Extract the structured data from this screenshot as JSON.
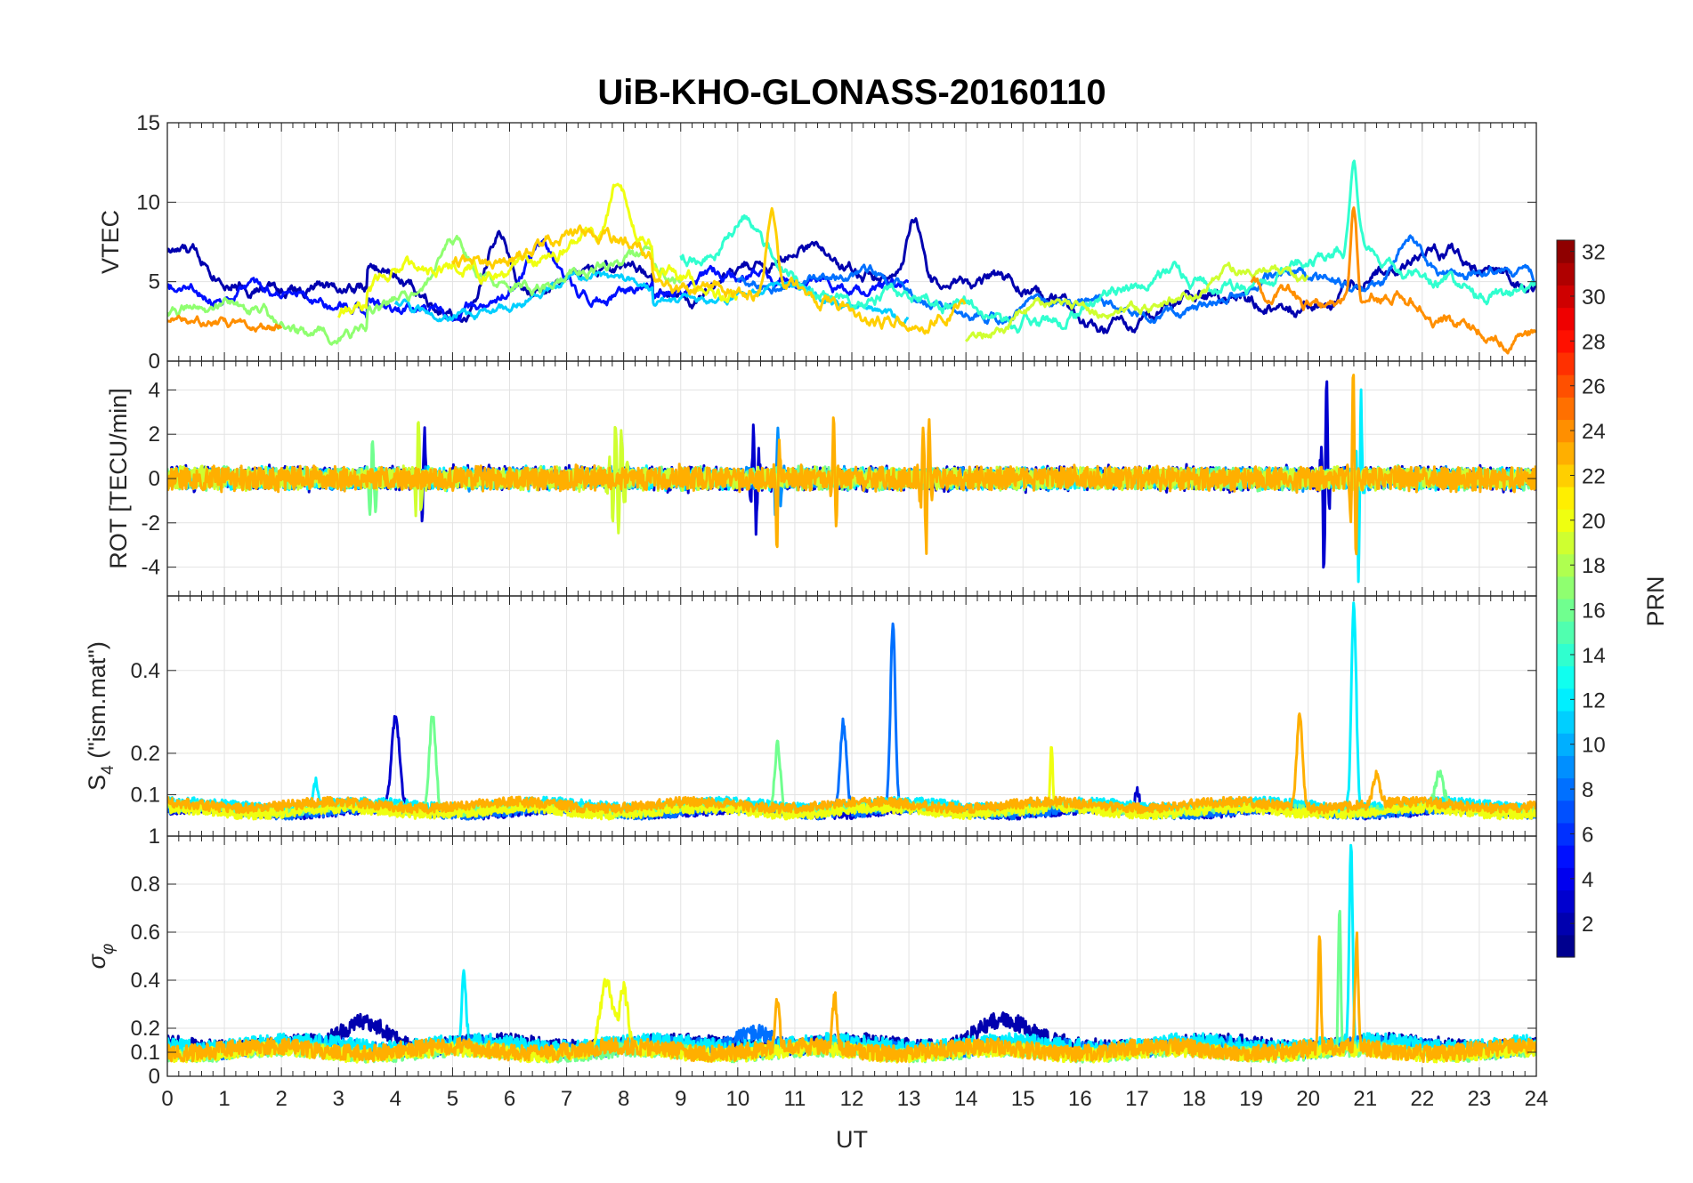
{
  "chart_data": {
    "type": "line",
    "title": "UiB-KHO-GLONASS-20160110",
    "xlabel": "UT",
    "xlim": [
      0,
      24
    ],
    "xticks": [
      "0",
      "1",
      "2",
      "3",
      "4",
      "5",
      "6",
      "7",
      "8",
      "9",
      "10",
      "11",
      "12",
      "13",
      "14",
      "15",
      "16",
      "17",
      "18",
      "19",
      "20",
      "21",
      "22",
      "23",
      "24"
    ],
    "colormap": "jet",
    "colorbar": {
      "label": "PRN",
      "range": [
        1,
        32
      ],
      "ticks": [
        "2",
        "4",
        "6",
        "8",
        "10",
        "12",
        "14",
        "16",
        "18",
        "20",
        "22",
        "24",
        "26",
        "28",
        "30",
        "32"
      ]
    },
    "panels": [
      {
        "id": "vtec",
        "ylabel": "VTEC",
        "ylim": [
          0,
          15
        ],
        "yticks": [
          "0",
          "5",
          "10",
          "15"
        ],
        "series": [
          {
            "prn": 2,
            "kind": "smooth",
            "start": 0,
            "end": 24,
            "base": 4.5,
            "amp": 1.6,
            "noise": 0.5,
            "peaks": [
              [
                5.8,
                4.5,
                0.3
              ],
              [
                13.1,
                4,
                0.2
              ]
            ]
          },
          {
            "prn": 5,
            "kind": "smooth",
            "start": 0,
            "end": 13,
            "base": 3.8,
            "amp": 1.3,
            "noise": 0.45,
            "peaks": [
              [
                6.5,
                3,
                0.4
              ]
            ]
          },
          {
            "prn": 8,
            "kind": "smooth",
            "start": 10,
            "end": 24,
            "base": 4.2,
            "amp": 1.2,
            "noise": 0.4,
            "peaks": [
              [
                21.8,
                3,
                0.3
              ]
            ]
          },
          {
            "prn": 11,
            "kind": "smooth",
            "start": 4,
            "end": 13,
            "base": 3.2,
            "amp": 1.2,
            "noise": 0.35,
            "peaks": [
              [
                13.2,
                6,
                0.15
              ]
            ]
          },
          {
            "prn": 14,
            "kind": "smooth",
            "start": 9,
            "end": 24,
            "base": 4.6,
            "amp": 1.6,
            "noise": 0.5,
            "peaks": [
              [
                10.2,
                3,
                0.4
              ],
              [
                20.8,
                5,
                0.1
              ]
            ]
          },
          {
            "prn": 17,
            "kind": "smooth",
            "start": 0,
            "end": 9,
            "base": 3.6,
            "amp": 1.4,
            "noise": 0.45,
            "peaks": [
              [
                5.0,
                2.5,
                0.4
              ]
            ]
          },
          {
            "prn": 19,
            "kind": "smooth",
            "start": 14,
            "end": 20,
            "base": 3.4,
            "amp": 1.6,
            "noise": 0.4,
            "peaks": []
          },
          {
            "prn": 20,
            "kind": "smooth",
            "start": 3,
            "end": 10,
            "base": 4.4,
            "amp": 1.6,
            "noise": 0.5,
            "peaks": [
              [
                7.9,
                3.5,
                0.2
              ]
            ]
          },
          {
            "prn": 22,
            "kind": "smooth",
            "start": 5,
            "end": 14,
            "base": 4.8,
            "amp": 1.5,
            "noise": 0.5,
            "peaks": [
              [
                10.6,
                5,
                0.12
              ]
            ]
          },
          {
            "prn": 24,
            "kind": "smooth",
            "start": 19,
            "end": 24,
            "base": 3.8,
            "amp": 1.4,
            "noise": 0.5,
            "peaks": [
              [
                20.8,
                6.5,
                0.08
              ]
            ]
          },
          {
            "prn": 24,
            "kind": "smooth",
            "start": 0,
            "end": 2,
            "base": 3.0,
            "amp": 0.8,
            "noise": 0.35,
            "peaks": []
          }
        ]
      },
      {
        "id": "rot",
        "ylabel": "ROT [TECU/min]",
        "ylim": [
          -5.3,
          5.3
        ],
        "yticks": [
          "-4",
          "-2",
          "0",
          "2",
          "4"
        ],
        "series": [
          {
            "prn": 3,
            "kind": "noise",
            "start": 0,
            "end": 24,
            "base": 0,
            "amp": 0.35,
            "noise": 0.5,
            "peaks": [
              [
                4.5,
                2.5,
                0.05
              ],
              [
                20.3,
                5,
                0.06
              ],
              [
                10.3,
                2.5,
                0.08
              ]
            ]
          },
          {
            "prn": 9,
            "kind": "noise",
            "start": 0,
            "end": 24,
            "base": 0,
            "amp": 0.3,
            "noise": 0.45,
            "peaks": [
              [
                10.7,
                2.3,
                0.06
              ]
            ]
          },
          {
            "prn": 12,
            "kind": "noise",
            "start": 0,
            "end": 24,
            "base": 0,
            "amp": 0.3,
            "noise": 0.45,
            "peaks": [
              [
                20.9,
                5,
                0.05
              ]
            ]
          },
          {
            "prn": 16,
            "kind": "noise",
            "start": 0,
            "end": 24,
            "base": 0,
            "amp": 0.3,
            "noise": 0.45,
            "peaks": [
              [
                3.6,
                1.8,
                0.1
              ]
            ]
          },
          {
            "prn": 19,
            "kind": "noise",
            "start": 0,
            "end": 24,
            "base": 0,
            "amp": 0.3,
            "noise": 0.45,
            "peaks": [
              [
                7.9,
                3,
                0.12
              ],
              [
                4.4,
                2.5,
                0.06
              ]
            ]
          },
          {
            "prn": 23,
            "kind": "noise",
            "start": 0,
            "end": 24,
            "base": 0,
            "amp": 0.35,
            "noise": 0.5,
            "peaks": [
              [
                10.7,
                3.5,
                0.04
              ],
              [
                13.3,
                3.2,
                0.1
              ],
              [
                20.8,
                5,
                0.06
              ],
              [
                11.7,
                3,
                0.05
              ]
            ]
          }
        ]
      },
      {
        "id": "s4",
        "ylabel": "S4 (\"ism.mat\")",
        "ylabel_main": "S",
        "ylabel_sub": "4",
        "ylabel_rest": " (\"ism.mat\")",
        "ylim": [
          0,
          0.58
        ],
        "yticks": [
          "0.1",
          "0.2",
          "0.4"
        ],
        "series": [
          {
            "prn": 3,
            "kind": "floor",
            "start": 0,
            "end": 24,
            "base": 0.06,
            "amp": 0.015,
            "noise": 0.012,
            "peaks": [
              [
                4.0,
                0.22,
                0.1
              ],
              [
                17.0,
                0.05,
                0.05
              ]
            ]
          },
          {
            "prn": 8,
            "kind": "floor",
            "start": 0,
            "end": 24,
            "base": 0.06,
            "amp": 0.015,
            "noise": 0.012,
            "peaks": [
              [
                12.72,
                0.45,
                0.06
              ],
              [
                11.85,
                0.22,
                0.08
              ]
            ]
          },
          {
            "prn": 12,
            "kind": "floor",
            "start": 0,
            "end": 24,
            "base": 0.075,
            "amp": 0.015,
            "noise": 0.012,
            "peaks": [
              [
                20.8,
                0.49,
                0.06
              ],
              [
                2.6,
                0.06,
                0.05
              ]
            ]
          },
          {
            "prn": 16,
            "kind": "floor",
            "start": 0,
            "end": 24,
            "base": 0.065,
            "amp": 0.015,
            "noise": 0.012,
            "peaks": [
              [
                4.65,
                0.23,
                0.08
              ],
              [
                10.7,
                0.16,
                0.07
              ],
              [
                22.3,
                0.08,
                0.1
              ]
            ]
          },
          {
            "prn": 20,
            "kind": "floor",
            "start": 0,
            "end": 24,
            "base": 0.06,
            "amp": 0.015,
            "noise": 0.012,
            "peaks": [
              [
                15.5,
                0.16,
                0.03
              ]
            ]
          },
          {
            "prn": 23,
            "kind": "floor",
            "start": 0,
            "end": 24,
            "base": 0.075,
            "amp": 0.015,
            "noise": 0.012,
            "peaks": [
              [
                19.85,
                0.22,
                0.07
              ],
              [
                21.2,
                0.07,
                0.08
              ]
            ]
          }
        ]
      },
      {
        "id": "sigma",
        "ylabel": "σφ",
        "ylabel_main": "σ",
        "ylabel_sub": "φ",
        "ylim": [
          0,
          1
        ],
        "yticks": [
          "0",
          "0.1",
          "0.2",
          "0.4",
          "0.6",
          "0.8",
          "1"
        ],
        "series": [
          {
            "prn": 2,
            "kind": "floor",
            "start": 0,
            "end": 24,
            "base": 0.13,
            "amp": 0.03,
            "noise": 0.035,
            "peaks": [
              [
                14.6,
                0.1,
                0.6
              ],
              [
                3.5,
                0.1,
                0.5
              ]
            ]
          },
          {
            "prn": 8,
            "kind": "floor",
            "start": 0,
            "end": 24,
            "base": 0.12,
            "amp": 0.03,
            "noise": 0.035,
            "peaks": [
              [
                10.3,
                0.08,
                0.4
              ]
            ]
          },
          {
            "prn": 12,
            "kind": "floor",
            "start": 0,
            "end": 24,
            "base": 0.13,
            "amp": 0.03,
            "noise": 0.035,
            "peaks": [
              [
                20.75,
                0.85,
                0.04
              ],
              [
                5.2,
                0.28,
                0.05
              ]
            ]
          },
          {
            "prn": 16,
            "kind": "floor",
            "start": 0,
            "end": 24,
            "base": 0.1,
            "amp": 0.025,
            "noise": 0.03,
            "peaks": [
              [
                20.55,
                0.58,
                0.03
              ]
            ]
          },
          {
            "prn": 20,
            "kind": "floor",
            "start": 0,
            "end": 24,
            "base": 0.1,
            "amp": 0.025,
            "noise": 0.03,
            "peaks": [
              [
                7.7,
                0.28,
                0.15
              ],
              [
                8.0,
                0.25,
                0.1
              ]
            ]
          },
          {
            "prn": 23,
            "kind": "floor",
            "start": 0,
            "end": 24,
            "base": 0.11,
            "amp": 0.03,
            "noise": 0.035,
            "peaks": [
              [
                20.2,
                0.47,
                0.03
              ],
              [
                20.85,
                0.45,
                0.04
              ],
              [
                11.7,
                0.22,
                0.05
              ],
              [
                10.7,
                0.2,
                0.05
              ]
            ]
          }
        ]
      }
    ]
  }
}
